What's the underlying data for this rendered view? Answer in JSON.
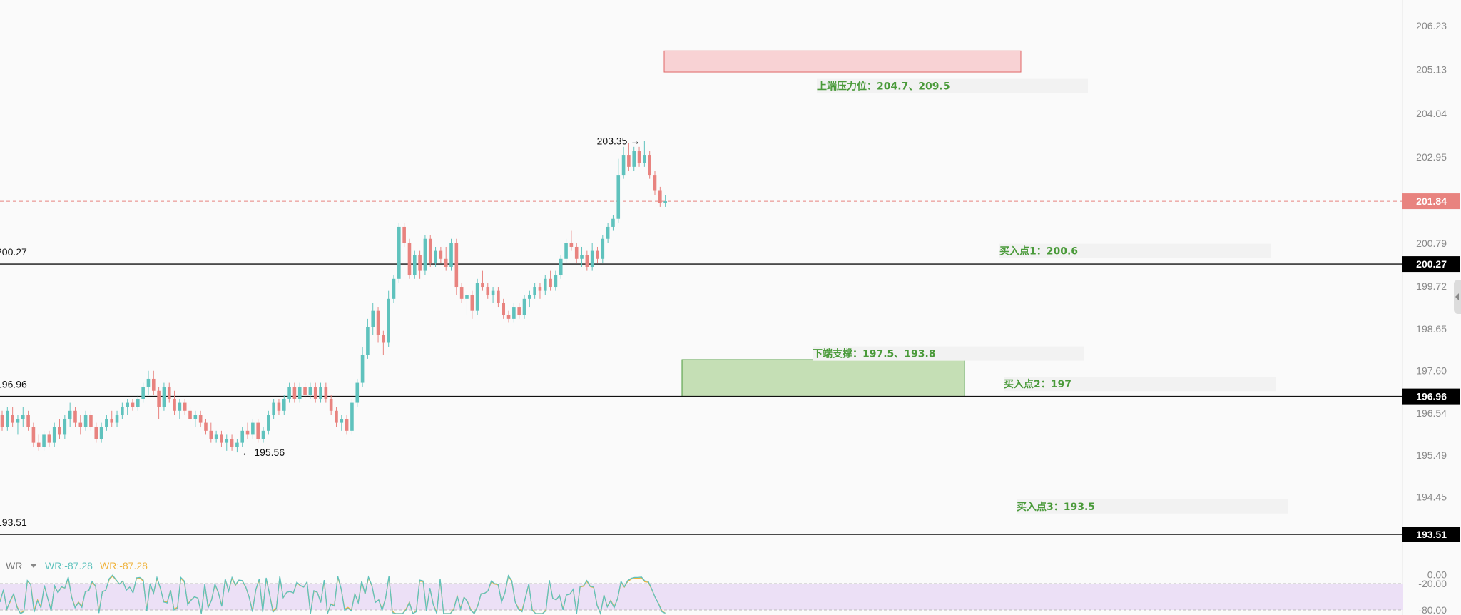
{
  "chart_data": {
    "type": "candlestick",
    "yaxis_ticks": [
      "206.23",
      "205.13",
      "204.04",
      "202.95",
      "201.84",
      "200.79",
      "199.72",
      "198.65",
      "197.60",
      "196.54",
      "195.49",
      "194.45",
      "193.51"
    ],
    "ylim": [
      193.3,
      206.6
    ],
    "current_price": "201.84",
    "current_price_value": 201.84,
    "horizontal_lines": [
      {
        "label": "200.27",
        "value": 200.27
      },
      {
        "label": "196.96",
        "value": 196.96
      },
      {
        "label": "193.51",
        "value": 193.51
      }
    ],
    "axis_badges": [
      "200.27",
      "196.96",
      "193.51"
    ],
    "zones": [
      {
        "name": "resistance",
        "top": 205.6,
        "bottom": 205.07,
        "color": "#f8d2d4",
        "border": "#e06666"
      },
      {
        "name": "support",
        "top": 197.88,
        "bottom": 196.96,
        "color": "#c5dfb5",
        "border": "#4a9a3a"
      }
    ],
    "annotations": [
      {
        "text": "上端压力位：204.7、209.5",
        "value": 204.72
      },
      {
        "text": "买入点1：200.6",
        "value": 200.6
      },
      {
        "text": "下端支撑：197.5、193.8",
        "value": 198.03
      },
      {
        "text": "买入点2：197",
        "value": 197.27
      },
      {
        "text": "买入点3：193.5",
        "value": 194.21
      }
    ],
    "markers": [
      {
        "text": "203.35 →",
        "value": 203.35
      },
      {
        "text": "← 195.56",
        "value": 195.56
      }
    ],
    "candles": [
      [
        196.5,
        196.6,
        196.1,
        196.2
      ],
      [
        196.2,
        196.7,
        196.1,
        196.6
      ],
      [
        196.5,
        196.7,
        196.2,
        196.3
      ],
      [
        196.3,
        196.5,
        196.0,
        196.4
      ],
      [
        196.4,
        196.7,
        196.2,
        196.5
      ],
      [
        196.5,
        196.6,
        196.1,
        196.2
      ],
      [
        196.2,
        196.3,
        195.7,
        195.8
      ],
      [
        195.8,
        196.0,
        195.6,
        195.7
      ],
      [
        195.7,
        196.1,
        195.6,
        196.0
      ],
      [
        196.0,
        196.1,
        195.7,
        195.8
      ],
      [
        195.8,
        196.3,
        195.7,
        196.2
      ],
      [
        196.2,
        196.4,
        195.9,
        196.0
      ],
      [
        196.0,
        196.5,
        195.9,
        196.4
      ],
      [
        196.4,
        196.8,
        196.2,
        196.6
      ],
      [
        196.6,
        196.7,
        196.2,
        196.3
      ],
      [
        196.3,
        196.5,
        196.0,
        196.2
      ],
      [
        196.2,
        196.6,
        196.1,
        196.5
      ],
      [
        196.5,
        196.6,
        196.1,
        196.2
      ],
      [
        196.2,
        196.3,
        195.8,
        195.9
      ],
      [
        195.9,
        196.3,
        195.8,
        196.2
      ],
      [
        196.2,
        196.5,
        196.1,
        196.4
      ],
      [
        196.4,
        196.6,
        196.2,
        196.3
      ],
      [
        196.3,
        196.6,
        196.2,
        196.5
      ],
      [
        196.5,
        196.8,
        196.4,
        196.7
      ],
      [
        196.7,
        196.9,
        196.5,
        196.8
      ],
      [
        196.8,
        196.9,
        196.6,
        196.7
      ],
      [
        196.7,
        197.0,
        196.6,
        196.9
      ],
      [
        196.9,
        197.3,
        196.8,
        197.2
      ],
      [
        197.2,
        197.6,
        197.0,
        197.4
      ],
      [
        197.4,
        197.6,
        197.0,
        197.1
      ],
      [
        197.1,
        197.2,
        196.4,
        196.7
      ],
      [
        196.7,
        197.3,
        196.6,
        197.2
      ],
      [
        197.2,
        197.3,
        196.8,
        196.9
      ],
      [
        196.9,
        197.1,
        196.5,
        196.6
      ],
      [
        196.6,
        196.9,
        196.4,
        196.8
      ],
      [
        196.8,
        196.9,
        196.5,
        196.6
      ],
      [
        196.6,
        196.7,
        196.3,
        196.4
      ],
      [
        196.4,
        196.6,
        196.2,
        196.5
      ],
      [
        196.5,
        196.6,
        196.2,
        196.3
      ],
      [
        196.3,
        196.4,
        196.0,
        196.1
      ],
      [
        196.1,
        196.3,
        195.8,
        195.9
      ],
      [
        195.9,
        196.1,
        195.8,
        196.0
      ],
      [
        196.0,
        196.1,
        195.7,
        195.8
      ],
      [
        195.8,
        196.0,
        195.6,
        195.9
      ],
      [
        195.9,
        196.0,
        195.6,
        195.7
      ],
      [
        195.7,
        195.9,
        195.56,
        195.8
      ],
      [
        195.8,
        196.2,
        195.7,
        196.1
      ],
      [
        196.1,
        196.3,
        195.9,
        196.0
      ],
      [
        196.0,
        196.4,
        195.9,
        196.3
      ],
      [
        196.3,
        196.4,
        195.8,
        195.9
      ],
      [
        195.9,
        196.2,
        195.8,
        196.1
      ],
      [
        196.1,
        196.6,
        196.0,
        196.5
      ],
      [
        196.5,
        196.9,
        196.4,
        196.8
      ],
      [
        196.8,
        196.9,
        196.5,
        196.6
      ],
      [
        196.6,
        197.0,
        196.5,
        196.9
      ],
      [
        196.9,
        197.3,
        196.8,
        197.2
      ],
      [
        197.2,
        197.3,
        196.8,
        196.9
      ],
      [
        196.9,
        197.3,
        196.8,
        197.2
      ],
      [
        197.2,
        197.3,
        196.9,
        197.0
      ],
      [
        197.0,
        197.3,
        196.9,
        197.2
      ],
      [
        197.2,
        197.3,
        196.8,
        196.9
      ],
      [
        196.9,
        197.3,
        196.8,
        197.2
      ],
      [
        197.2,
        197.3,
        196.8,
        196.9
      ],
      [
        196.9,
        197.0,
        196.5,
        196.6
      ],
      [
        196.6,
        196.7,
        196.2,
        196.3
      ],
      [
        196.3,
        196.5,
        196.1,
        196.4
      ],
      [
        196.4,
        196.5,
        196.0,
        196.1
      ],
      [
        196.1,
        196.9,
        196.0,
        196.8
      ],
      [
        196.8,
        197.4,
        196.7,
        197.3
      ],
      [
        197.3,
        198.2,
        197.2,
        198.0
      ],
      [
        198.0,
        198.9,
        197.9,
        198.7
      ],
      [
        198.7,
        199.3,
        198.5,
        199.1
      ],
      [
        199.1,
        199.2,
        198.3,
        198.5
      ],
      [
        198.5,
        198.6,
        198.0,
        198.3
      ],
      [
        198.3,
        199.6,
        198.2,
        199.4
      ],
      [
        199.4,
        200.0,
        199.3,
        199.9
      ],
      [
        199.9,
        201.3,
        199.8,
        201.2
      ],
      [
        201.2,
        201.3,
        200.7,
        200.8
      ],
      [
        200.8,
        200.9,
        199.9,
        200.0
      ],
      [
        200.0,
        200.6,
        199.9,
        200.5
      ],
      [
        200.5,
        200.6,
        199.9,
        200.1
      ],
      [
        200.1,
        201.0,
        200.0,
        200.9
      ],
      [
        200.9,
        201.0,
        200.2,
        200.3
      ],
      [
        200.3,
        200.7,
        200.2,
        200.6
      ],
      [
        200.6,
        200.7,
        200.3,
        200.4
      ],
      [
        200.4,
        200.7,
        200.1,
        200.2
      ],
      [
        200.2,
        200.9,
        200.1,
        200.8
      ],
      [
        200.8,
        200.9,
        199.5,
        199.7
      ],
      [
        199.7,
        199.8,
        199.3,
        199.4
      ],
      [
        199.4,
        199.6,
        199.0,
        199.5
      ],
      [
        199.5,
        199.6,
        198.9,
        199.1
      ],
      [
        199.1,
        199.9,
        199.0,
        199.8
      ],
      [
        199.8,
        200.1,
        199.6,
        199.7
      ],
      [
        199.7,
        199.8,
        199.4,
        199.5
      ],
      [
        199.5,
        199.7,
        199.3,
        199.6
      ],
      [
        199.6,
        199.7,
        199.2,
        199.3
      ],
      [
        199.3,
        199.4,
        198.9,
        199.0
      ],
      [
        199.0,
        199.1,
        198.8,
        198.9
      ],
      [
        198.9,
        199.3,
        198.8,
        199.2
      ],
      [
        199.2,
        199.3,
        198.9,
        199.0
      ],
      [
        199.0,
        199.5,
        198.9,
        199.4
      ],
      [
        199.4,
        199.6,
        199.2,
        199.5
      ],
      [
        199.5,
        199.8,
        199.4,
        199.7
      ],
      [
        199.7,
        199.8,
        199.4,
        199.6
      ],
      [
        199.6,
        200.0,
        199.5,
        199.9
      ],
      [
        199.9,
        200.1,
        199.6,
        199.7
      ],
      [
        199.7,
        200.1,
        199.6,
        200.0
      ],
      [
        200.0,
        200.5,
        199.9,
        200.4
      ],
      [
        200.4,
        200.9,
        200.3,
        200.8
      ],
      [
        200.8,
        201.1,
        200.6,
        200.7
      ],
      [
        200.7,
        200.8,
        200.3,
        200.4
      ],
      [
        200.4,
        200.7,
        200.2,
        200.5
      ],
      [
        200.5,
        200.6,
        200.1,
        200.2
      ],
      [
        200.2,
        200.8,
        200.1,
        200.6
      ],
      [
        200.6,
        200.7,
        200.3,
        200.4
      ],
      [
        200.4,
        201.0,
        200.3,
        200.9
      ],
      [
        200.9,
        201.3,
        200.8,
        201.2
      ],
      [
        201.2,
        201.5,
        201.1,
        201.4
      ],
      [
        201.4,
        202.9,
        201.3,
        202.5
      ],
      [
        202.5,
        203.2,
        202.4,
        203.0
      ],
      [
        203.0,
        203.3,
        202.6,
        202.7
      ],
      [
        202.7,
        203.2,
        202.6,
        203.1
      ],
      [
        203.1,
        203.2,
        202.7,
        202.8
      ],
      [
        202.8,
        203.35,
        202.7,
        203.0
      ],
      [
        203.0,
        203.1,
        202.4,
        202.5
      ],
      [
        202.5,
        202.6,
        202.0,
        202.1
      ],
      [
        202.1,
        202.2,
        201.7,
        201.8
      ],
      [
        201.8,
        202.0,
        201.7,
        201.84
      ]
    ],
    "indicator": {
      "name": "WR",
      "label1": "WR:-87.28",
      "label2": "WR:-87.28",
      "color1": "#5fc2bd",
      "color2": "#f0b33c",
      "ticks": [
        "0.00",
        "-20.00",
        "-80.00"
      ],
      "ylim": [
        -100,
        0
      ],
      "band": [
        -20,
        -80
      ],
      "series1": [
        -62,
        -34,
        -78,
        -59,
        -43,
        -74,
        -93,
        -84,
        -13,
        -22,
        -85,
        -59,
        -75,
        -24,
        -54,
        -82,
        -25,
        -41,
        -27,
        -30,
        -5,
        -51,
        -75,
        -63,
        -74,
        -38,
        -36,
        -15,
        -25,
        -87,
        -38,
        -35,
        -9,
        -1,
        -11,
        -21,
        -14,
        -35,
        -28,
        -41,
        -7,
        -6,
        -12,
        -83,
        -20,
        -42,
        -6,
        -30,
        -62,
        -64,
        -35,
        -80,
        -76,
        -6,
        -14,
        -68,
        -58,
        -50,
        -53,
        -91,
        -21,
        -75,
        -58,
        -21,
        -40,
        -72,
        -9,
        -37,
        -6,
        -23,
        -12,
        -13,
        -27,
        -50,
        -84,
        -33,
        -9,
        -85,
        -7,
        -44,
        -85,
        -77,
        -3,
        -52,
        -40,
        -38,
        -41,
        -17,
        -24,
        -28,
        -16,
        -93,
        -36,
        -40,
        -63,
        -12,
        -93,
        -67,
        -71,
        -3,
        -32,
        -81,
        -76,
        -82,
        -43,
        -64,
        -14,
        -44,
        -5,
        -24,
        -63,
        -57,
        -81,
        -53,
        -3,
        -86,
        -96,
        -94,
        -99,
        -80,
        -63,
        -96,
        -84,
        -12,
        -14,
        -83,
        -30,
        -68,
        -89,
        -9,
        -94,
        -98,
        -93,
        -79,
        -48,
        -78,
        -51,
        -61,
        -81,
        -98,
        -71,
        -43,
        -42,
        -37,
        -14,
        -20,
        -22,
        -62,
        -41,
        -2,
        -13,
        -62,
        -79,
        -84,
        -52,
        -20,
        -81,
        -96,
        -92,
        -91,
        -82,
        -12,
        -53,
        -57,
        -47,
        -80,
        -46,
        -44,
        -33,
        -89,
        -27,
        -25,
        -13,
        -26,
        -28,
        -70,
        -96,
        -46,
        -73,
        -59,
        -75,
        -54,
        -15,
        -27,
        -13,
        -8,
        -6,
        -6,
        -5,
        -14,
        -15,
        -32,
        -51,
        -66,
        -84,
        -87.28
      ],
      "series2": [
        -59,
        -35,
        -78,
        -61,
        -44,
        -72,
        -90,
        -81,
        -15,
        -21,
        -81,
        -57,
        -73,
        -26,
        -54,
        -80,
        -27,
        -40,
        -28,
        -30,
        -7,
        -50,
        -73,
        -62,
        -71,
        -38,
        -36,
        -17,
        -26,
        -84,
        -39,
        -35,
        -11,
        -3,
        -12,
        -21,
        -15,
        -34,
        -28,
        -40,
        -9,
        -8,
        -14,
        -80,
        -22,
        -42,
        -8,
        -31,
        -61,
        -62,
        -35,
        -78,
        -74,
        -8,
        -16,
        -66,
        -57,
        -50,
        -53,
        -88,
        -23,
        -73,
        -57,
        -22,
        -41,
        -70,
        -11,
        -37,
        -8,
        -24,
        -13,
        -14,
        -28,
        -50,
        -81,
        -34,
        -11,
        -82,
        -9,
        -44,
        -82,
        -75,
        -5,
        -52,
        -40,
        -38,
        -41,
        -18,
        -25,
        -28,
        -17,
        -90,
        -37,
        -40,
        -62,
        -14,
        -90,
        -66,
        -70,
        -5,
        -33,
        -78,
        -74,
        -80,
        -43,
        -63,
        -16,
        -44,
        -7,
        -25,
        -62,
        -57,
        -79,
        -53,
        -5,
        -83,
        -93,
        -91,
        -96,
        -78,
        -62,
        -93,
        -82,
        -14,
        -16,
        -80,
        -31,
        -67,
        -86,
        -11,
        -91,
        -95,
        -90,
        -77,
        -48,
        -76,
        -51,
        -60,
        -79,
        -95,
        -70,
        -43,
        -42,
        -37,
        -16,
        -21,
        -23,
        -61,
        -41,
        -4,
        -15,
        -61,
        -77,
        -81,
        -52,
        -22,
        -79,
        -93,
        -89,
        -88,
        -80,
        -14,
        -53,
        -57,
        -47,
        -78,
        -46,
        -44,
        -34,
        -86,
        -28,
        -26,
        -15,
        -27,
        -29,
        -69,
        -93,
        -46,
        -72,
        -58,
        -73,
        -54,
        -17,
        -28,
        -15,
        -10,
        -8,
        -8,
        -7,
        -16,
        -17,
        -33,
        -51,
        -65,
        -82,
        -87.28
      ]
    },
    "colors": {
      "up": "#5fc2bd",
      "down": "#e8837f",
      "price_line": "#e8837f",
      "annotation": "#4a9a3a",
      "band": "#ece0f6"
    }
  }
}
